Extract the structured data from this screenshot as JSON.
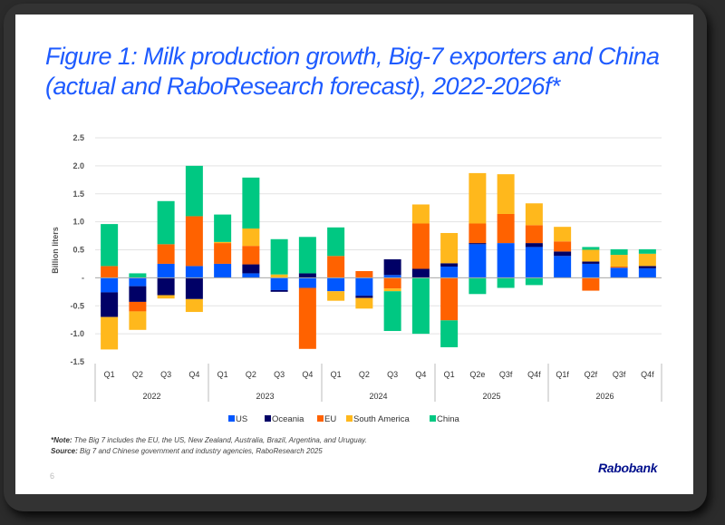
{
  "slide": {
    "title": "Figure 1: Milk production growth, Big-7 exporters and China (actual and RaboResearch forecast), 2022-2026f*",
    "note_label": "*Note:",
    "note_text": " The Big 7 includes the EU, the US, New Zealand, Australia, Brazil, Argentina, and Uruguay.",
    "source_label": "Source:",
    "source_text": " Big 7 and Chinese government and industry agencies, RaboResearch 2025",
    "page_number": "6",
    "logo": "Rabobank"
  },
  "chart_data": {
    "type": "bar",
    "stacked": true,
    "title": "Figure 1: Milk production growth, Big-7 exporters and China (actual and RaboResearch forecast), 2022-2026f*",
    "xlabel": "",
    "ylabel": "Billion liters",
    "ylim": [
      -1.5,
      2.5
    ],
    "yticks": [
      2.5,
      2.0,
      1.5,
      1.0,
      0.5,
      0,
      -0.5,
      -1.0,
      -1.5
    ],
    "ytick_labels": [
      "2.5",
      "2.0",
      "1.5",
      "1.0",
      "0.5",
      "-",
      "-0.5",
      "-1.0",
      "-1.5"
    ],
    "grid": true,
    "legend_position": "bottom",
    "categories": [
      "Q1",
      "Q2",
      "Q3",
      "Q4",
      "Q1",
      "Q2",
      "Q3",
      "Q4",
      "Q1",
      "Q2",
      "Q3",
      "Q4",
      "Q1",
      "Q2e",
      "Q3f",
      "Q4f",
      "Q1f",
      "Q2f",
      "Q3f",
      "Q4f"
    ],
    "groups": [
      {
        "label": "2022",
        "count": 4
      },
      {
        "label": "2023",
        "count": 4
      },
      {
        "label": "2024",
        "count": 4
      },
      {
        "label": "2025",
        "count": 4
      },
      {
        "label": "2026",
        "count": 4
      }
    ],
    "series": [
      {
        "name": "US",
        "color": "#0057ff",
        "values": [
          -0.26,
          -0.15,
          0.25,
          0.21,
          0.25,
          0.08,
          -0.22,
          -0.18,
          -0.24,
          -0.32,
          0.05,
          0.0,
          0.2,
          0.6,
          0.62,
          0.55,
          0.39,
          0.25,
          0.18,
          0.17
        ]
      },
      {
        "name": "Oceania",
        "color": "#000066",
        "values": [
          -0.44,
          -0.28,
          -0.31,
          -0.38,
          0.0,
          0.16,
          -0.03,
          0.08,
          0.0,
          -0.04,
          0.28,
          0.16,
          0.06,
          0.02,
          0.0,
          0.07,
          0.08,
          0.04,
          0.0,
          0.04
        ]
      },
      {
        "name": "EU",
        "color": "#ff6200",
        "values": [
          0.21,
          -0.17,
          0.35,
          0.89,
          0.37,
          0.33,
          0.0,
          -1.09,
          0.39,
          0.12,
          -0.19,
          0.81,
          -0.76,
          0.35,
          0.52,
          0.32,
          0.18,
          -0.23,
          0.02,
          0.0
        ]
      },
      {
        "name": "South America",
        "color": "#ffb81c",
        "values": [
          -0.58,
          -0.33,
          -0.06,
          -0.23,
          0.02,
          0.31,
          0.06,
          0.0,
          -0.17,
          -0.19,
          -0.05,
          0.34,
          0.54,
          0.9,
          0.71,
          0.39,
          0.26,
          0.21,
          0.21,
          0.22
        ]
      },
      {
        "name": "China",
        "color": "#00c882",
        "values": [
          0.75,
          0.08,
          0.77,
          0.9,
          0.49,
          0.91,
          0.63,
          0.65,
          0.51,
          0.0,
          -0.71,
          -1.0,
          -0.48,
          -0.29,
          -0.18,
          -0.13,
          0.0,
          0.05,
          0.1,
          0.08
        ]
      }
    ]
  }
}
